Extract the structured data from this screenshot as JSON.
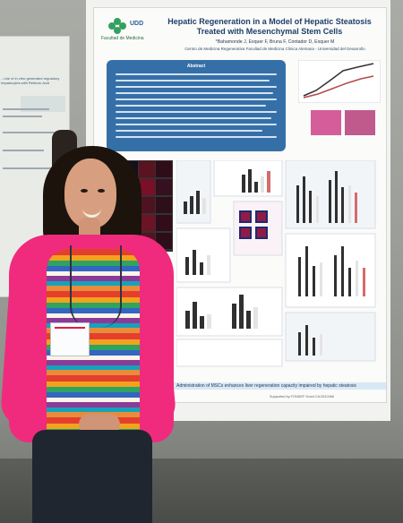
{
  "poster": {
    "institution": "Facultad de Medicina",
    "logo_text": "UDD",
    "title": "Hepatic Regeneration in a Model of Hepatic Steatosis Treated with Mesenchymal Stem Cells",
    "authors": "*Bahamonde J, Exquer F, Bruna F, Contador D, Exquer M",
    "affiliation": "Centro de Medicina Regenerativa Facultad de Medicina Clinica Alemana - Universidad del Desarrollo",
    "abstract_label": "Abstract",
    "bottom_caption": "Administration of MSCs enhances liver regeneration capacity impaired by hepatic steatosis",
    "support_text": "Supported by FONDEF Grant CA13I10366"
  },
  "left_poster": {
    "title": "...role of in vitro generated regulatory hepatocytes with Retinoic Acid"
  },
  "colors": {
    "accent": "#356fa8",
    "cardigan": "#f02b7e"
  }
}
